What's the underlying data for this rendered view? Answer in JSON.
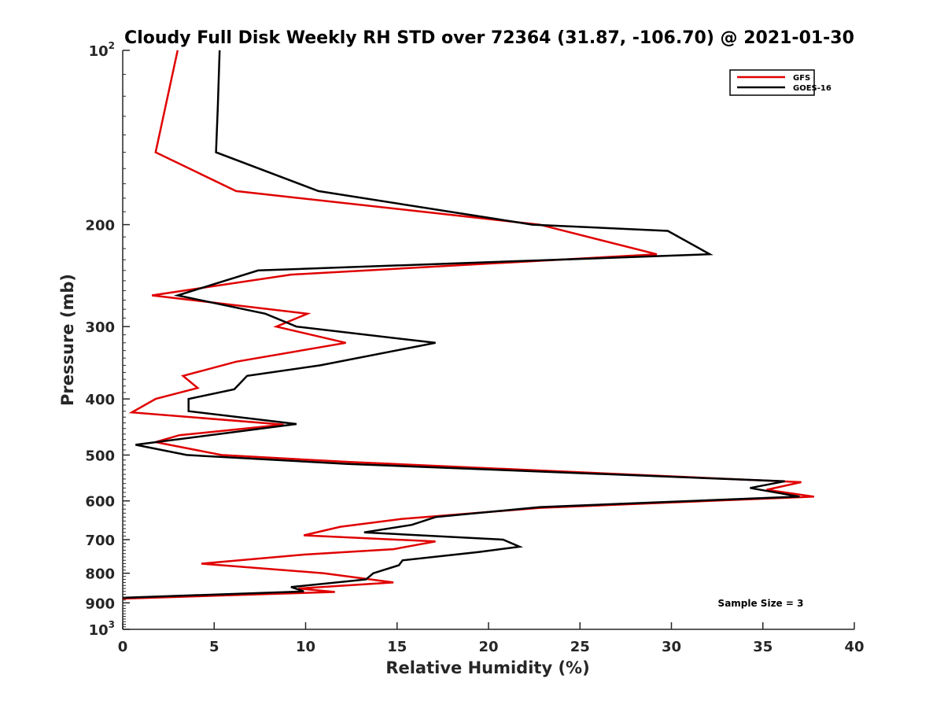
{
  "chart_data": {
    "type": "line",
    "title": "Cloudy Full Disk Weekly RH STD over 72364 (31.87, -106.70) @ 2021-01-30",
    "xlabel": "Relative Humidity (%)",
    "ylabel": "Pressure (mb)",
    "xlim": [
      0,
      40
    ],
    "ylim": [
      100,
      1000
    ],
    "yscale": "log",
    "yreversed": true,
    "grid": false,
    "legend_position": "top-right",
    "x_ticks": [
      "0",
      "5",
      "10",
      "15",
      "20",
      "25",
      "30",
      "35",
      "40"
    ],
    "y_ticks": [
      {
        "value": 100,
        "base": "10",
        "exp": "2"
      },
      {
        "value": 200,
        "label": "200"
      },
      {
        "value": 300,
        "label": "300"
      },
      {
        "value": 400,
        "label": "400"
      },
      {
        "value": 500,
        "label": "500"
      },
      {
        "value": 600,
        "label": "600"
      },
      {
        "value": 700,
        "label": "700"
      },
      {
        "value": 800,
        "label": "800"
      },
      {
        "value": 900,
        "label": "900"
      },
      {
        "value": 1000,
        "base": "10",
        "exp": "3"
      }
    ],
    "annotation": "Sample Size = 3",
    "series": [
      {
        "name": "GFS",
        "color": "#e00000",
        "points": [
          [
            3.0,
            100
          ],
          [
            1.8,
            150
          ],
          [
            6.2,
            175
          ],
          [
            22.8,
            200
          ],
          [
            29.2,
            225
          ],
          [
            9.2,
            244
          ],
          [
            1.6,
            265
          ],
          [
            10.1,
            285
          ],
          [
            8.4,
            300
          ],
          [
            12.2,
            320
          ],
          [
            6.2,
            345
          ],
          [
            3.3,
            365
          ],
          [
            4.1,
            383
          ],
          [
            1.8,
            400
          ],
          [
            0.5,
            422
          ],
          [
            8.8,
            443
          ],
          [
            3.1,
            462
          ],
          [
            1.8,
            475
          ],
          [
            5.4,
            500
          ],
          [
            12.4,
            514
          ],
          [
            37.1,
            557
          ],
          [
            35.2,
            574
          ],
          [
            37.8,
            590
          ],
          [
            22.8,
            617
          ],
          [
            15.2,
            645
          ],
          [
            11.9,
            665
          ],
          [
            9.9,
            688
          ],
          [
            17.1,
            705
          ],
          [
            14.8,
            727
          ],
          [
            9.9,
            743
          ],
          [
            4.3,
            770
          ],
          [
            11.0,
            800
          ],
          [
            14.8,
            830
          ],
          [
            9.6,
            850
          ],
          [
            11.6,
            862
          ],
          [
            0.0,
            885
          ]
        ]
      },
      {
        "name": "GOES-16",
        "color": "#000000",
        "points": [
          [
            5.3,
            100
          ],
          [
            5.2,
            125
          ],
          [
            5.1,
            150
          ],
          [
            10.7,
            175
          ],
          [
            22.4,
            200
          ],
          [
            29.8,
            205
          ],
          [
            32.1,
            225
          ],
          [
            7.4,
            240
          ],
          [
            3.0,
            265
          ],
          [
            7.8,
            285
          ],
          [
            9.5,
            300
          ],
          [
            17.1,
            320
          ],
          [
            10.8,
            350
          ],
          [
            6.8,
            365
          ],
          [
            6.1,
            385
          ],
          [
            3.6,
            400
          ],
          [
            3.6,
            420
          ],
          [
            9.5,
            442
          ],
          [
            0.7,
            480
          ],
          [
            3.5,
            500
          ],
          [
            12.3,
            518
          ],
          [
            36.2,
            555
          ],
          [
            34.3,
            570
          ],
          [
            37.0,
            590
          ],
          [
            22.8,
            615
          ],
          [
            17.1,
            640
          ],
          [
            15.8,
            660
          ],
          [
            13.2,
            680
          ],
          [
            20.8,
            700
          ],
          [
            21.7,
            720
          ],
          [
            19.5,
            735
          ],
          [
            15.3,
            760
          ],
          [
            15.1,
            775
          ],
          [
            13.7,
            800
          ],
          [
            13.3,
            820
          ],
          [
            9.2,
            845
          ],
          [
            9.9,
            860
          ],
          [
            0.0,
            882
          ]
        ]
      }
    ]
  }
}
